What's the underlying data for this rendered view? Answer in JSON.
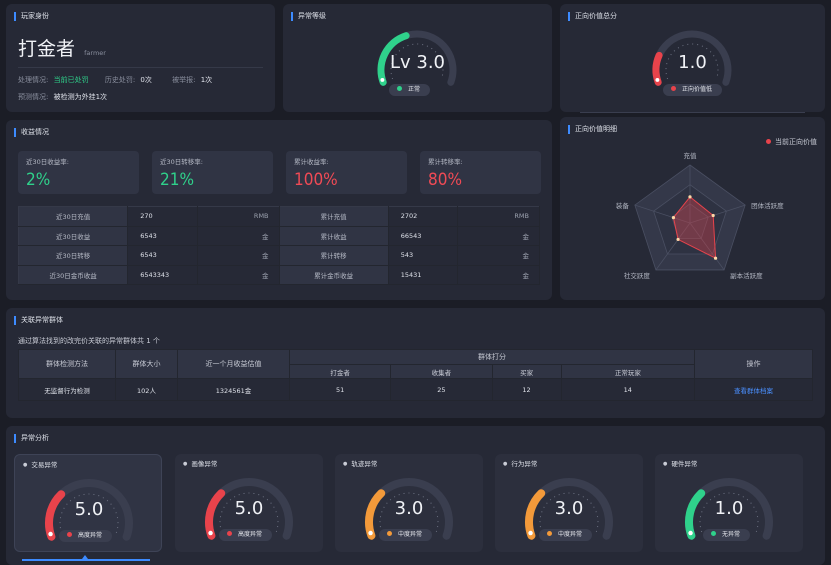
{
  "identity": {
    "title": "玩家身份",
    "name": "打金者",
    "name_en": "farmer",
    "handle_label": "处理情况:",
    "handle_value": "当前已处罚",
    "history_label": "历史处罚:",
    "history_value": "0次",
    "report_label": "被举报:",
    "report_value": "1次",
    "predict_label": "预测情况:",
    "predict_value": "被检测为外挂1次"
  },
  "level": {
    "title": "异常等级",
    "value": "Lv 3.0",
    "status": "正常",
    "fraction": 0.42,
    "color": "#2fd18b"
  },
  "positive_total": {
    "title": "正向价值总分",
    "value": "1.0",
    "status": "正向价值低",
    "fraction": 0.2,
    "color": "#e8434b"
  },
  "income": {
    "title": "收益情况",
    "cards": [
      {
        "label": "近30日收益率:",
        "value": "2%",
        "color": "#2fd18b"
      },
      {
        "label": "近30日转移率:",
        "value": "21%",
        "color": "#2fd18b"
      },
      {
        "label": "累计收益率:",
        "value": "100%",
        "color": "#f04a55"
      },
      {
        "label": "累计转移率:",
        "value": "80%",
        "color": "#f04a55"
      }
    ],
    "rows": [
      {
        "k1": "近30日充值",
        "v1": "270",
        "u1": "RMB",
        "k2": "累计充值",
        "v2": "2702",
        "u2": "RMB"
      },
      {
        "k1": "近30日收益",
        "v1": "6543",
        "u1": "金",
        "k2": "累计收益",
        "v2": "66543",
        "u2": "金"
      },
      {
        "k1": "近30日转移",
        "v1": "6543",
        "u1": "金",
        "k2": "累计转移",
        "v2": "543",
        "u2": "金"
      },
      {
        "k1": "近30日金币收益",
        "v1": "6543343",
        "u1": "金",
        "k2": "累计金币收益",
        "v2": "15431",
        "u2": "金"
      }
    ]
  },
  "positive_detail": {
    "title": "正向价值明细",
    "legend": "当前正向价值",
    "axes": [
      "充值",
      "团体活跃度",
      "副本活跃度",
      "社交跃度",
      "装备"
    ],
    "values": [
      0.45,
      0.42,
      0.75,
      0.35,
      0.3
    ],
    "color": "#e8434b"
  },
  "groups": {
    "title": "关联异常群体",
    "desc": "通过算法找到的改完价关联的异常群体共 1 个",
    "headers": {
      "method": "群体检测方法",
      "size": "群体大小",
      "income": "近一个月收益估值",
      "score": "群体打分",
      "sub": [
        "打金者",
        "收集者",
        "买家",
        "正常玩家"
      ],
      "op": "操作"
    },
    "rows": [
      {
        "method": "无监督行为检测",
        "size": "102人",
        "income": "1324561金",
        "s1": "51",
        "s2": "25",
        "s3": "12",
        "s4": "14",
        "op": "查看群体档案"
      }
    ]
  },
  "anomaly": {
    "title": "异常分析",
    "gauges": [
      {
        "title": "交易异常",
        "value": "5.0",
        "status": "高度异常",
        "fraction": 0.3,
        "color": "#e8434b"
      },
      {
        "title": "画像异常",
        "value": "5.0",
        "status": "高度异常",
        "fraction": 0.3,
        "color": "#e8434b"
      },
      {
        "title": "轨迹异常",
        "value": "3.0",
        "status": "中度异常",
        "fraction": 0.3,
        "color": "#f39a3a"
      },
      {
        "title": "行为异常",
        "value": "3.0",
        "status": "中度异常",
        "fraction": 0.3,
        "color": "#f39a3a"
      },
      {
        "title": "硬件异常",
        "value": "1.0",
        "status": "无异常",
        "fraction": 0.3,
        "color": "#2fd18b"
      }
    ]
  }
}
